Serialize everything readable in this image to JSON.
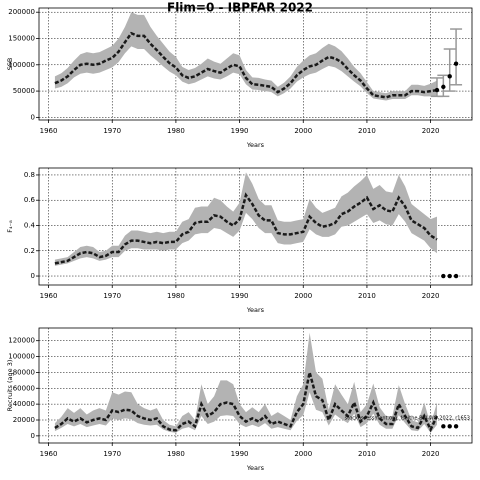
{
  "chart_data": [
    {
      "type": "line",
      "title": "Flim=0 - IBPFAR 2022",
      "xlabel": "Years",
      "ylabel": "SSB",
      "xlim": [
        1958.5,
        2026.5
      ],
      "xticks": [
        1960,
        1970,
        1980,
        1990,
        2000,
        2010,
        2020
      ],
      "ylim": [
        -5000,
        208000
      ],
      "yticks": [
        0,
        50000,
        100000,
        150000,
        200000
      ],
      "grid": true,
      "dashed": true,
      "color": "#1a1a1a",
      "band_color": "#b3b3b3",
      "x": [
        1961,
        1962,
        1963,
        1964,
        1965,
        1966,
        1967,
        1968,
        1969,
        1970,
        1971,
        1972,
        1973,
        1974,
        1975,
        1976,
        1977,
        1978,
        1979,
        1980,
        1981,
        1982,
        1983,
        1984,
        1985,
        1986,
        1987,
        1988,
        1989,
        1990,
        1991,
        1992,
        1993,
        1994,
        1995,
        1996,
        1997,
        1998,
        1999,
        2000,
        2001,
        2002,
        2003,
        2004,
        2005,
        2006,
        2007,
        2008,
        2009,
        2010,
        2011,
        2012,
        2013,
        2014,
        2015,
        2016,
        2017,
        2018,
        2019,
        2020,
        2021
      ],
      "values": [
        65000,
        70000,
        78000,
        90000,
        100000,
        102000,
        100000,
        102000,
        108000,
        113000,
        125000,
        143000,
        160000,
        155000,
        155000,
        140000,
        128000,
        115000,
        103000,
        95000,
        80000,
        75000,
        78000,
        85000,
        92000,
        88000,
        85000,
        93000,
        100000,
        97000,
        75000,
        63000,
        62000,
        60000,
        58000,
        48000,
        55000,
        65000,
        80000,
        90000,
        97000,
        100000,
        108000,
        115000,
        112000,
        105000,
        92000,
        80000,
        70000,
        55000,
        42000,
        40000,
        38000,
        42000,
        42000,
        42000,
        50000,
        50000,
        48000,
        50000,
        52000
      ],
      "lower": [
        55000,
        58000,
        65000,
        76000,
        83000,
        85000,
        83000,
        85000,
        90000,
        95000,
        105000,
        122000,
        135000,
        130000,
        130000,
        118000,
        108000,
        97000,
        87000,
        80000,
        68000,
        63000,
        66000,
        72000,
        78000,
        74000,
        72000,
        78000,
        85000,
        82000,
        63000,
        53000,
        52000,
        50000,
        48000,
        40000,
        46000,
        55000,
        68000,
        76000,
        82000,
        85000,
        92000,
        98000,
        95000,
        88000,
        78000,
        68000,
        59000,
        46000,
        36000,
        34000,
        32000,
        35000,
        35000,
        35000,
        42000,
        42000,
        40000,
        40000,
        40000
      ],
      "upper": [
        78000,
        84000,
        94000,
        108000,
        120000,
        124000,
        122000,
        124000,
        130000,
        136000,
        150000,
        172000,
        200000,
        195000,
        195000,
        172000,
        155000,
        140000,
        125000,
        115000,
        96000,
        90000,
        94000,
        102000,
        112000,
        106000,
        102000,
        112000,
        122000,
        118000,
        90000,
        76000,
        75000,
        72000,
        70000,
        58000,
        66000,
        78000,
        96000,
        108000,
        118000,
        122000,
        132000,
        140000,
        135000,
        126000,
        112000,
        96000,
        84000,
        67000,
        50000,
        48000,
        46000,
        50000,
        50000,
        50000,
        62000,
        62000,
        60000,
        64000,
        70000
      ],
      "projection": {
        "x": [
          2021,
          2022,
          2023,
          2024
        ],
        "values": [
          52000,
          58000,
          78000,
          102000
        ],
        "lower": [
          40000,
          40000,
          50000,
          62000
        ],
        "upper": [
          75000,
          80000,
          130000,
          168000
        ]
      }
    },
    {
      "type": "line",
      "xlabel": "Years",
      "ylabel": "F₄₋₈",
      "xlim": [
        1958.5,
        2026.5
      ],
      "xticks": [
        1960,
        1970,
        1980,
        1990,
        2000,
        2010,
        2020
      ],
      "ylim": [
        -0.071,
        0.855
      ],
      "yticks": [
        0,
        0.2,
        0.4,
        0.6,
        0.8
      ],
      "grid": true,
      "dashed": true,
      "color": "#1a1a1a",
      "band_color": "#b3b3b3",
      "x": [
        1961,
        1962,
        1963,
        1964,
        1965,
        1966,
        1967,
        1968,
        1969,
        1970,
        1971,
        1972,
        1973,
        1974,
        1975,
        1976,
        1977,
        1978,
        1979,
        1980,
        1981,
        1982,
        1983,
        1984,
        1985,
        1986,
        1987,
        1988,
        1989,
        1990,
        1991,
        1992,
        1993,
        1994,
        1995,
        1996,
        1997,
        1998,
        1999,
        2000,
        2001,
        2002,
        2003,
        2004,
        2005,
        2006,
        2007,
        2008,
        2009,
        2010,
        2011,
        2012,
        2013,
        2014,
        2015,
        2016,
        2017,
        2018,
        2019,
        2020,
        2021
      ],
      "values": [
        0.1,
        0.11,
        0.12,
        0.15,
        0.18,
        0.19,
        0.18,
        0.15,
        0.16,
        0.19,
        0.19,
        0.25,
        0.28,
        0.28,
        0.27,
        0.26,
        0.27,
        0.26,
        0.27,
        0.27,
        0.33,
        0.35,
        0.42,
        0.43,
        0.43,
        0.48,
        0.47,
        0.43,
        0.4,
        0.45,
        0.64,
        0.57,
        0.48,
        0.44,
        0.44,
        0.34,
        0.33,
        0.33,
        0.34,
        0.35,
        0.47,
        0.42,
        0.39,
        0.4,
        0.42,
        0.49,
        0.51,
        0.55,
        0.58,
        0.62,
        0.53,
        0.56,
        0.52,
        0.51,
        0.62,
        0.55,
        0.44,
        0.41,
        0.38,
        0.32,
        0.29
      ],
      "lower": [
        0.08,
        0.09,
        0.1,
        0.12,
        0.14,
        0.15,
        0.14,
        0.12,
        0.13,
        0.15,
        0.15,
        0.2,
        0.22,
        0.22,
        0.21,
        0.21,
        0.21,
        0.2,
        0.21,
        0.21,
        0.26,
        0.28,
        0.33,
        0.34,
        0.34,
        0.38,
        0.37,
        0.34,
        0.31,
        0.36,
        0.5,
        0.45,
        0.38,
        0.34,
        0.34,
        0.26,
        0.25,
        0.25,
        0.26,
        0.27,
        0.37,
        0.33,
        0.31,
        0.31,
        0.33,
        0.39,
        0.4,
        0.43,
        0.46,
        0.49,
        0.42,
        0.44,
        0.41,
        0.4,
        0.49,
        0.43,
        0.34,
        0.31,
        0.28,
        0.22,
        0.18
      ],
      "upper": [
        0.13,
        0.14,
        0.15,
        0.19,
        0.23,
        0.24,
        0.23,
        0.19,
        0.2,
        0.24,
        0.24,
        0.32,
        0.36,
        0.36,
        0.35,
        0.34,
        0.35,
        0.34,
        0.35,
        0.35,
        0.43,
        0.45,
        0.54,
        0.55,
        0.55,
        0.62,
        0.6,
        0.55,
        0.51,
        0.58,
        0.82,
        0.73,
        0.61,
        0.56,
        0.56,
        0.44,
        0.43,
        0.43,
        0.44,
        0.45,
        0.61,
        0.54,
        0.5,
        0.52,
        0.54,
        0.63,
        0.66,
        0.71,
        0.75,
        0.8,
        0.69,
        0.72,
        0.67,
        0.66,
        0.8,
        0.71,
        0.57,
        0.53,
        0.49,
        0.45,
        0.47
      ],
      "projection": {
        "x": [
          2022,
          2023,
          2024
        ],
        "values": [
          0,
          0,
          0
        ]
      }
    },
    {
      "type": "line",
      "xlabel": "Years",
      "ylabel": "Recruits (age 3)",
      "annotation": "stockassessment.org, fsaithe-BW-WG-2022, r1653",
      "xlim": [
        1958.5,
        2026.5
      ],
      "xticks": [
        1960,
        1970,
        1980,
        1990,
        2000,
        2010,
        2020
      ],
      "ylim": [
        -9000,
        136000
      ],
      "yticks": [
        0,
        20000,
        40000,
        60000,
        80000,
        100000,
        120000
      ],
      "grid": true,
      "dashed": true,
      "color": "#1a1a1a",
      "band_color": "#b3b3b3",
      "x": [
        1961,
        1962,
        1963,
        1964,
        1965,
        1966,
        1967,
        1968,
        1969,
        1970,
        1971,
        1972,
        1973,
        1974,
        1975,
        1976,
        1977,
        1978,
        1979,
        1980,
        1981,
        1982,
        1983,
        1984,
        1985,
        1986,
        1987,
        1988,
        1989,
        1990,
        1991,
        1992,
        1993,
        1994,
        1995,
        1996,
        1997,
        1998,
        1999,
        2000,
        2001,
        2002,
        2003,
        2004,
        2005,
        2006,
        2007,
        2008,
        2009,
        2010,
        2011,
        2012,
        2013,
        2014,
        2015,
        2016,
        2017,
        2018,
        2019,
        2020,
        2021
      ],
      "values": [
        10000,
        15000,
        22000,
        18000,
        22000,
        17000,
        20000,
        22000,
        20000,
        32000,
        30000,
        33000,
        32000,
        25000,
        22000,
        20000,
        22000,
        12000,
        8000,
        7000,
        15000,
        18000,
        12000,
        40000,
        25000,
        30000,
        40000,
        42000,
        40000,
        25000,
        18000,
        22000,
        18000,
        25000,
        15000,
        18000,
        15000,
        12000,
        30000,
        40000,
        80000,
        50000,
        45000,
        20000,
        40000,
        32000,
        25000,
        42000,
        18000,
        25000,
        42000,
        22000,
        15000,
        15000,
        40000,
        25000,
        12000,
        10000,
        25000,
        8000,
        25000
      ],
      "lower": [
        6000,
        10000,
        15000,
        12000,
        15000,
        11000,
        13000,
        15000,
        13000,
        22000,
        20000,
        22000,
        21000,
        16000,
        14000,
        13000,
        14000,
        8000,
        5000,
        4000,
        9000,
        11000,
        7000,
        25000,
        15000,
        18000,
        25000,
        26000,
        25000,
        15000,
        11000,
        14000,
        11000,
        16000,
        9000,
        11000,
        9000,
        7000,
        19000,
        26000,
        55000,
        33000,
        30000,
        13000,
        27000,
        21000,
        16000,
        28000,
        11000,
        16000,
        28000,
        14000,
        9000,
        9000,
        26000,
        16000,
        7000,
        6000,
        15000,
        4000,
        14000
      ],
      "upper": [
        16000,
        24000,
        35000,
        29000,
        35000,
        27000,
        32000,
        35000,
        32000,
        55000,
        52000,
        56000,
        55000,
        40000,
        35000,
        32000,
        35000,
        20000,
        14000,
        12000,
        25000,
        30000,
        20000,
        65000,
        40000,
        50000,
        70000,
        70000,
        65000,
        40000,
        30000,
        36000,
        30000,
        40000,
        25000,
        30000,
        25000,
        20000,
        50000,
        65000,
        130000,
        80000,
        72000,
        33000,
        65000,
        52000,
        40000,
        68000,
        30000,
        40000,
        66000,
        36000,
        25000,
        25000,
        64000,
        40000,
        20000,
        17000,
        42000,
        14000,
        42000
      ],
      "projection": {
        "x": [
          2022,
          2023,
          2024
        ],
        "values": [
          12000,
          12000,
          12000
        ]
      }
    }
  ]
}
